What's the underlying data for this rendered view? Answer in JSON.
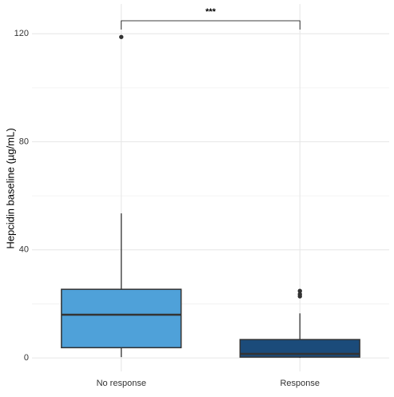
{
  "chart_data": {
    "type": "box",
    "y_label": "Hepcidin baseline (µg/mL)",
    "categories": [
      "No response",
      "Response"
    ],
    "boxes": [
      {
        "color": "#4fa1d9",
        "min": 0.3,
        "q1": 3.8,
        "median": 16,
        "q3": 25.4,
        "max": 53.5,
        "outliers": [
          118.8
        ]
      },
      {
        "color": "#1b4b7a",
        "min": 0,
        "q1": 0.3,
        "median": 1.5,
        "q3": 6.8,
        "max": 16.5,
        "outliers": [
          24.8,
          23.6,
          22.8
        ]
      }
    ],
    "annotation": "***",
    "ylim": [
      -5,
      131
    ],
    "yticks": [
      0,
      40,
      80,
      120
    ],
    "grid": true,
    "minor_grid": true
  }
}
